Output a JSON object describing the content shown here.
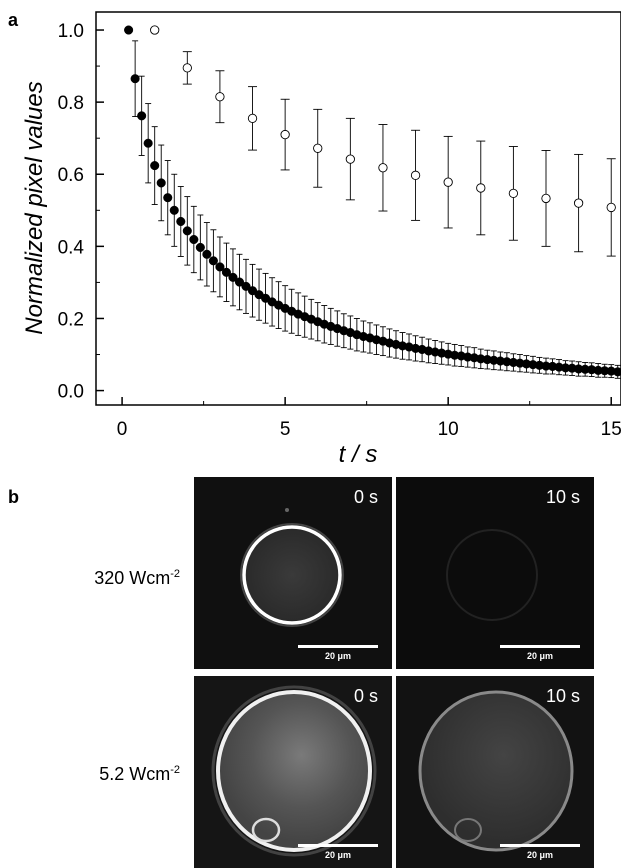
{
  "panel_a_label": "a",
  "panel_b_label": "b",
  "chart_data": {
    "type": "scatter",
    "xlabel": "t / s",
    "ylabel": "Normalized pixel values",
    "xlim": [
      -0.8,
      15.3
    ],
    "ylim": [
      -0.04,
      1.05
    ],
    "xticks": [
      0,
      5,
      10,
      15
    ],
    "yticks": [
      0.0,
      0.2,
      0.4,
      0.6,
      0.8,
      1.0
    ],
    "xtick_labels": [
      "0",
      "5",
      "10",
      "15"
    ],
    "ytick_labels": [
      "0.0",
      "0.2",
      "0.4",
      "0.6",
      "0.8",
      "1.0"
    ],
    "grid": false,
    "series": [
      {
        "marker": "filled-circle",
        "color": "#000000",
        "x": [
          0.2,
          0.4,
          0.6,
          0.8,
          1.0,
          1.2,
          1.4,
          1.6,
          1.8,
          2.0,
          2.2,
          2.4,
          2.6,
          2.8,
          3.0,
          3.2,
          3.4,
          3.6,
          3.8,
          4.0,
          4.2,
          4.4,
          4.6,
          4.8,
          5.0,
          5.2,
          5.4,
          5.6,
          5.8,
          6.0,
          6.2,
          6.4,
          6.6,
          6.8,
          7.0,
          7.2,
          7.4,
          7.6,
          7.8,
          8.0,
          8.2,
          8.4,
          8.6,
          8.8,
          9.0,
          9.2,
          9.4,
          9.6,
          9.8,
          10.0,
          10.2,
          10.4,
          10.6,
          10.8,
          11.0,
          11.2,
          11.4,
          11.6,
          11.8,
          12.0,
          12.2,
          12.4,
          12.6,
          12.8,
          13.0,
          13.2,
          13.4,
          13.6,
          13.8,
          14.0,
          14.2,
          14.4,
          14.6,
          14.8,
          15.0,
          15.2
        ],
        "y": [
          1.0,
          0.865,
          0.762,
          0.686,
          0.624,
          0.576,
          0.535,
          0.5,
          0.469,
          0.443,
          0.419,
          0.397,
          0.378,
          0.36,
          0.343,
          0.328,
          0.314,
          0.301,
          0.289,
          0.277,
          0.266,
          0.256,
          0.246,
          0.237,
          0.228,
          0.22,
          0.212,
          0.205,
          0.198,
          0.191,
          0.184,
          0.178,
          0.172,
          0.166,
          0.161,
          0.155,
          0.15,
          0.146,
          0.141,
          0.137,
          0.132,
          0.128,
          0.124,
          0.121,
          0.117,
          0.114,
          0.11,
          0.107,
          0.104,
          0.101,
          0.098,
          0.096,
          0.093,
          0.091,
          0.088,
          0.086,
          0.084,
          0.082,
          0.08,
          0.078,
          0.076,
          0.074,
          0.072,
          0.07,
          0.068,
          0.067,
          0.065,
          0.063,
          0.062,
          0.06,
          0.059,
          0.058,
          0.056,
          0.055,
          0.054,
          0.052
        ],
        "err": [
          0,
          0.105,
          0.11,
          0.11,
          0.108,
          0.105,
          0.103,
          0.1,
          0.097,
          0.095,
          0.092,
          0.09,
          0.088,
          0.086,
          0.083,
          0.081,
          0.079,
          0.077,
          0.075,
          0.073,
          0.071,
          0.069,
          0.067,
          0.065,
          0.063,
          0.061,
          0.059,
          0.057,
          0.055,
          0.053,
          0.052,
          0.05,
          0.049,
          0.047,
          0.046,
          0.045,
          0.043,
          0.042,
          0.041,
          0.04,
          0.039,
          0.038,
          0.037,
          0.036,
          0.035,
          0.034,
          0.033,
          0.032,
          0.031,
          0.03,
          0.03,
          0.029,
          0.028,
          0.028,
          0.027,
          0.026,
          0.026,
          0.025,
          0.025,
          0.024,
          0.024,
          0.023,
          0.023,
          0.022,
          0.022,
          0.021,
          0.021,
          0.02,
          0.02,
          0.02,
          0.019,
          0.019,
          0.019,
          0.018,
          0.018,
          0.018
        ]
      },
      {
        "marker": "open-circle",
        "color": "#000000",
        "x": [
          1,
          2,
          3,
          4,
          5,
          6,
          7,
          8,
          9,
          10,
          11,
          12,
          13,
          14,
          15
        ],
        "y": [
          1.0,
          0.895,
          0.815,
          0.755,
          0.71,
          0.672,
          0.642,
          0.618,
          0.597,
          0.578,
          0.562,
          0.547,
          0.533,
          0.52,
          0.508
        ],
        "err": [
          0,
          0.045,
          0.072,
          0.088,
          0.098,
          0.108,
          0.113,
          0.12,
          0.125,
          0.127,
          0.13,
          0.13,
          0.133,
          0.135,
          0.135
        ]
      }
    ]
  },
  "panel_b": {
    "rows": [
      {
        "condition_main": "320 Wcm",
        "condition_sup": "-2",
        "tiles": [
          {
            "time": "0 s",
            "scale": "20 μm"
          },
          {
            "time": "10 s",
            "scale": "20 μm"
          }
        ]
      },
      {
        "condition_main": "5.2 Wcm",
        "condition_sup": "-2",
        "tiles": [
          {
            "time": "0 s",
            "scale": "20 μm"
          },
          {
            "time": "10 s",
            "scale": "20 μm"
          }
        ]
      }
    ]
  }
}
